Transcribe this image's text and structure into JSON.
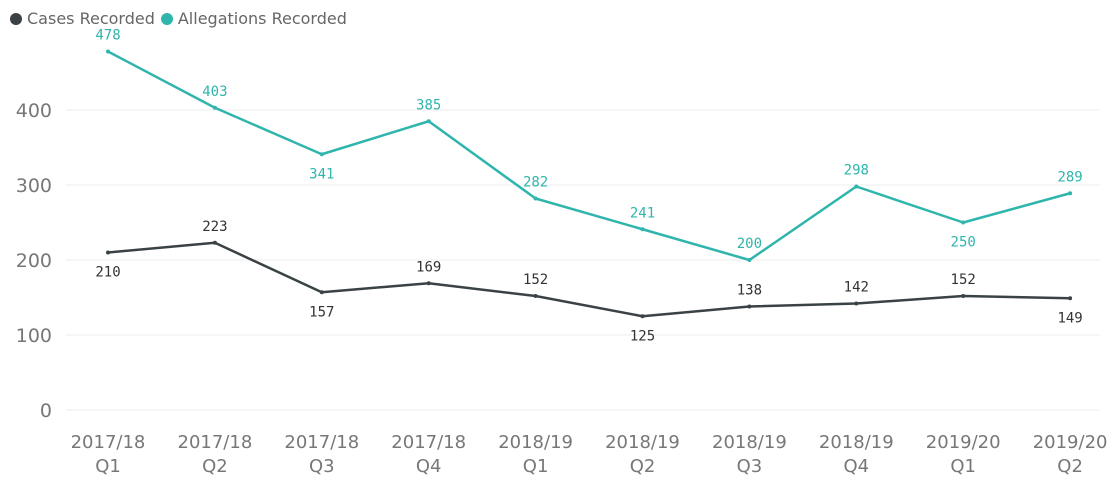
{
  "chart_data": {
    "type": "line",
    "categories": [
      [
        "2017/18",
        "Q1"
      ],
      [
        "2017/18",
        "Q2"
      ],
      [
        "2017/18",
        "Q3"
      ],
      [
        "2017/18",
        "Q4"
      ],
      [
        "2018/19",
        "Q1"
      ],
      [
        "2018/19",
        "Q2"
      ],
      [
        "2018/19",
        "Q3"
      ],
      [
        "2018/19",
        "Q4"
      ],
      [
        "2019/20",
        "Q1"
      ],
      [
        "2019/20",
        "Q2"
      ]
    ],
    "series": [
      {
        "name": "Cases Recorded",
        "color": "#3a4246",
        "values": [
          210,
          223,
          157,
          169,
          152,
          125,
          138,
          142,
          152,
          149
        ]
      },
      {
        "name": "Allegations Recorded",
        "color": "#2fb5ac",
        "values": [
          478,
          403,
          341,
          385,
          282,
          241,
          200,
          298,
          250,
          289
        ]
      }
    ],
    "yticks": [
      0,
      100,
      200,
      300,
      400
    ],
    "ylim": [
      0,
      480
    ],
    "grid": true,
    "legend": "top-left"
  }
}
